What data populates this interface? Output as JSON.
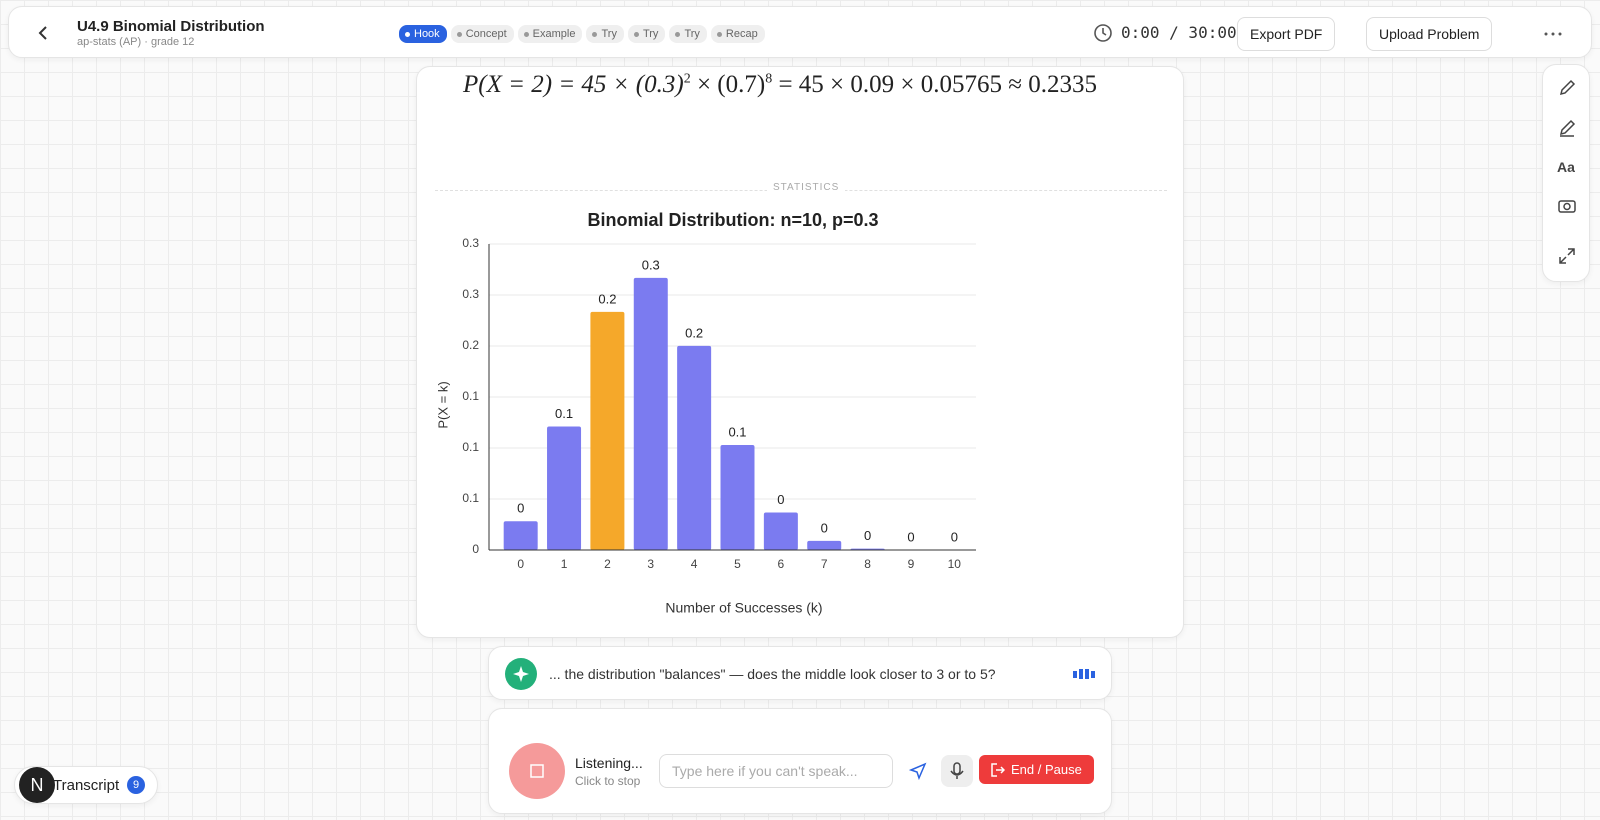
{
  "header": {
    "title": "U4.9 Binomial Distribution",
    "subtitle": "ap-stats (AP) · grade 12",
    "steps": [
      "Hook",
      "Concept",
      "Example",
      "Try",
      "Try",
      "Try",
      "Recap"
    ],
    "timer": "0:00 / 30:00",
    "export": "Export PDF",
    "upload": "Upload Problem"
  },
  "formula": {
    "lhs": "P(X = 2) = 45 × (0.3)",
    "exp1": "2",
    "mid": " × (0.7)",
    "exp2": "8",
    "rhs": " = 45 × 0.09 × 0.05765 ≈ 0.2335"
  },
  "section": "STATISTICS",
  "chart_data": {
    "type": "bar",
    "title": "Binomial Distribution: n=10, p=0.3",
    "x_label": "Number of Successes (k)",
    "y_label": "P(X = k)",
    "categories": [
      "0",
      "1",
      "2",
      "3",
      "4",
      "5",
      "6",
      "7",
      "8",
      "9",
      "10"
    ],
    "values": [
      0.0282,
      0.1211,
      0.2335,
      0.2668,
      0.2001,
      0.1029,
      0.0368,
      0.009,
      0.0014,
      0.0001,
      0
    ],
    "value_labels": [
      "0",
      "0.1",
      "0.2",
      "0.3",
      "0.2",
      "0.1",
      "0",
      "0",
      "0",
      "0",
      "0"
    ],
    "colors": [
      "#7b7bf0",
      "#7b7bf0",
      "#f5a82a",
      "#7b7bf0",
      "#7b7bf0",
      "#7b7bf0",
      "#7b7bf0",
      "#7b7bf0",
      "#7b7bf0",
      "#7b7bf0",
      "#7b7bf0"
    ],
    "ylim": [
      0,
      0.3
    ],
    "yticks": [
      0,
      {
        "value": 0.05,
        "label": "0.1"
      },
      0.1,
      {
        "value": 0.15,
        "label": "0.1"
      },
      0.2,
      {
        "value": 0.25,
        "label": "0.3"
      },
      0.3
    ],
    "grid": true
  },
  "tutor": {
    "message": "... the distribution \"balances\" — does the middle look closer to 3 or to 5?"
  },
  "input": {
    "status": "Listening...",
    "hint": "Click to stop",
    "placeholder": "Type here if you can't speak...",
    "end": "End / Pause"
  },
  "sidebar": {
    "font": "Aa"
  },
  "transcript": {
    "avatar": "N",
    "label": "Transcript",
    "count": 9
  }
}
